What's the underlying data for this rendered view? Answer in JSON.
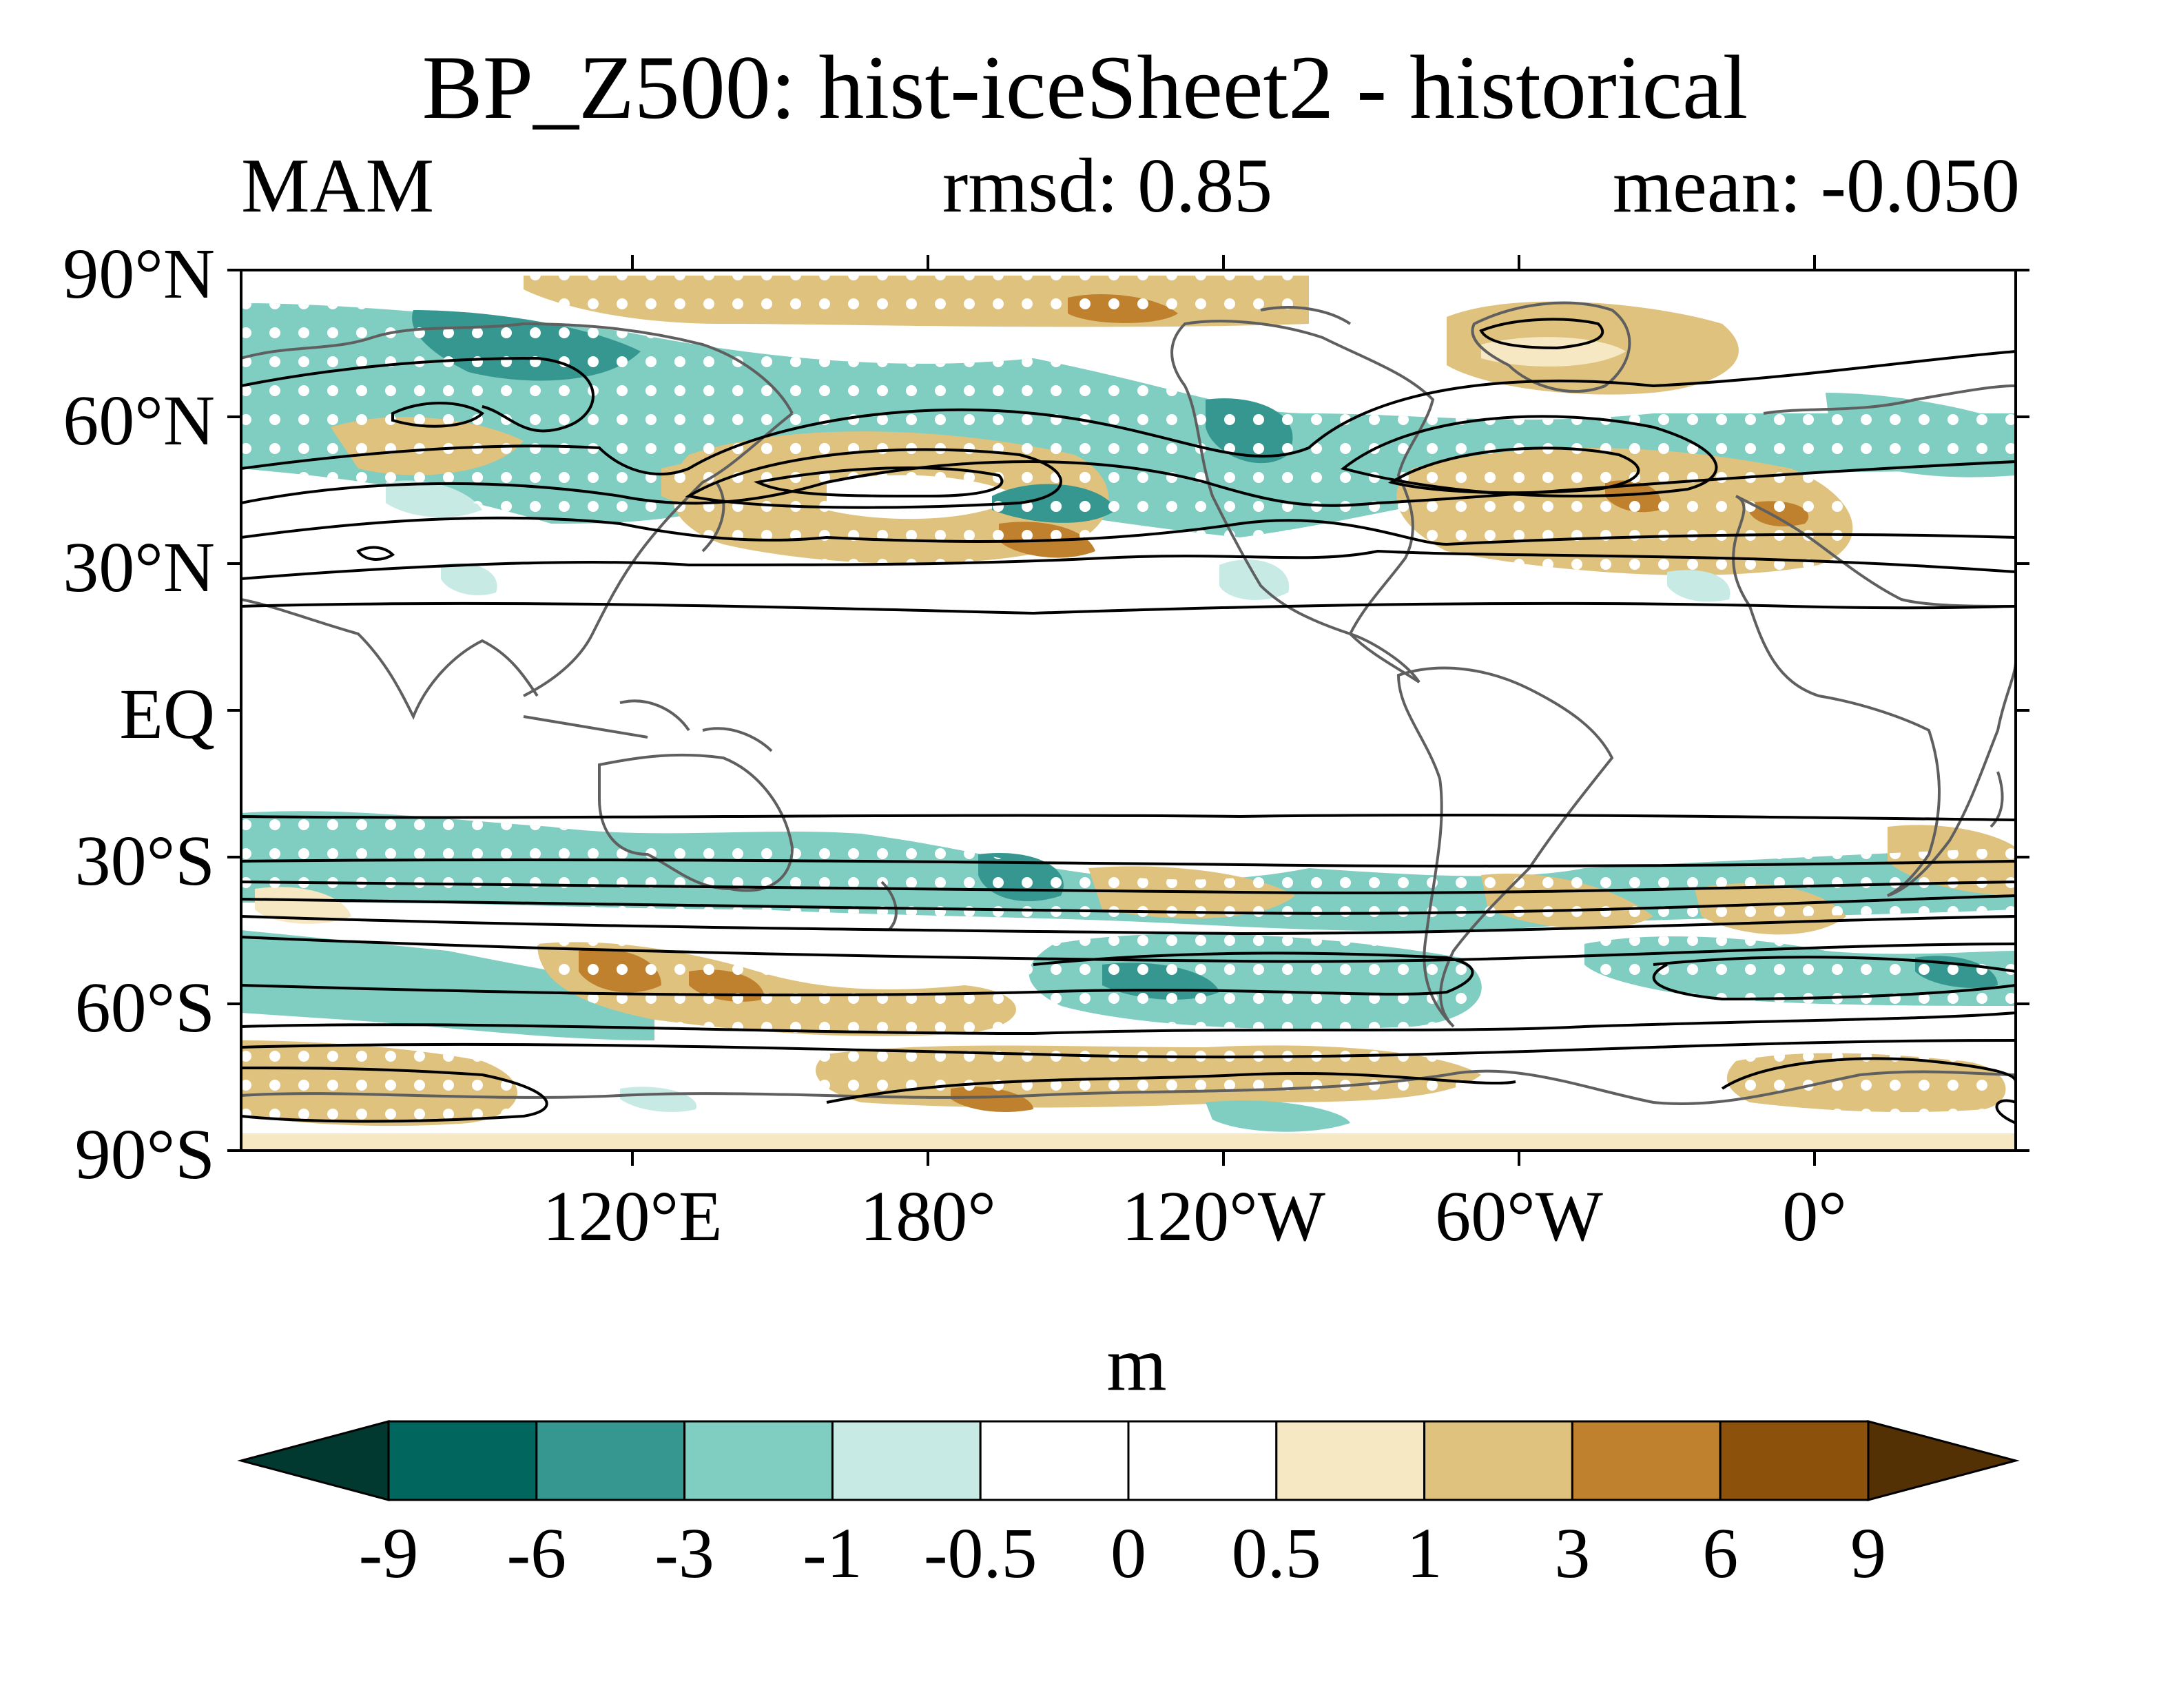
{
  "title": "BP_Z500: hist-iceSheet2 - historical",
  "season": "MAM",
  "rmsd": "rmsd: 0.85",
  "mean": "mean: -0.050",
  "lat_labels": [
    "90°N",
    "60°N",
    "30°N",
    "EQ",
    "30°S",
    "60°S",
    "90°S"
  ],
  "lon_labels": [
    "120°E",
    "180°",
    "120°W",
    "60°W",
    "0°"
  ],
  "colorbar": {
    "units": "m",
    "levels": [
      "-9",
      "-6",
      "-3",
      "-1",
      "-0.5",
      "0",
      "0.5",
      "1",
      "3",
      "6",
      "9"
    ],
    "colors": [
      "#01382f",
      "#01665e",
      "#35978f",
      "#80cdc1",
      "#c7eae5",
      "#ffffff",
      "#ffffff",
      "#f6e8c3",
      "#dfc27d",
      "#bf812d",
      "#8c510a",
      "#543005"
    ]
  }
}
